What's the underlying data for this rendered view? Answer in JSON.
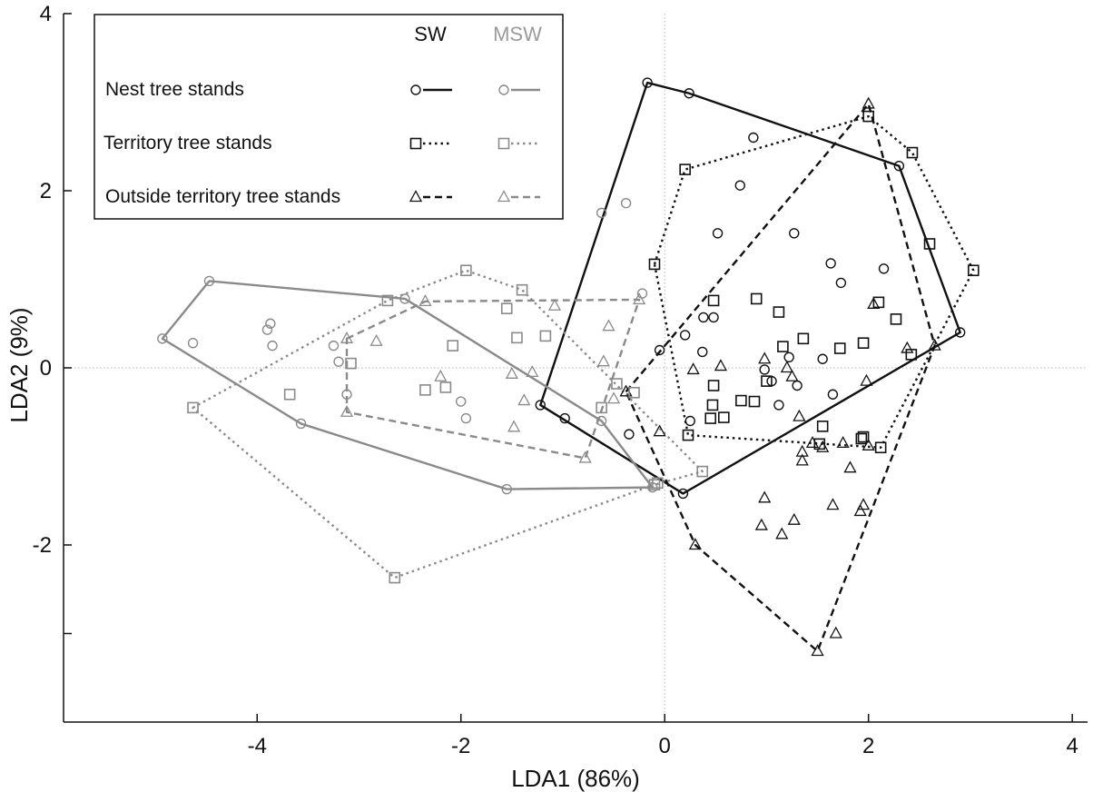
{
  "chart_data": {
    "type": "scatter",
    "title": "",
    "xlabel": "LDA1 (86%)",
    "ylabel": "LDA2 (9%)",
    "xlim": [
      -5.9,
      4.15
    ],
    "ylim": [
      -4.0,
      4.0
    ],
    "xticks": [
      -4,
      -2,
      0,
      2,
      4
    ],
    "yticks": [
      4,
      2,
      0,
      -2
    ],
    "xtick_labels": [
      "-4",
      "-2",
      "0",
      "2",
      "4"
    ],
    "ytick_labels": [
      "4",
      "2",
      "0",
      "-2"
    ],
    "zero_lines": true,
    "grid": false,
    "legend": {
      "position": "top-left",
      "col_headers": [
        "SW",
        "MSW"
      ],
      "rows": [
        "Nest tree stands",
        "Territory tree stands",
        "Outside territory tree stands"
      ]
    },
    "colors": {
      "SW": "#111111",
      "MSW": "#8a8a8a"
    },
    "series": [
      {
        "group": "SW",
        "stand": "Nest tree stands",
        "marker": "circle",
        "line": "solid",
        "hull": [
          [
            -1.22,
            -0.42
          ],
          [
            -0.17,
            3.22
          ],
          [
            0.24,
            3.1
          ],
          [
            2.3,
            2.28
          ],
          [
            2.9,
            0.4
          ],
          [
            0.18,
            -1.42
          ]
        ],
        "points": [
          [
            -0.98,
            -0.57
          ],
          [
            -0.35,
            -0.75
          ],
          [
            -0.05,
            0.2
          ],
          [
            0.2,
            0.37
          ],
          [
            0.25,
            -0.6
          ],
          [
            0.38,
            0.57
          ],
          [
            0.48,
            0.57
          ],
          [
            0.37,
            0.18
          ],
          [
            0.52,
            1.52
          ],
          [
            0.74,
            2.06
          ],
          [
            0.87,
            2.6
          ],
          [
            1.27,
            1.52
          ],
          [
            1.22,
            0.12
          ],
          [
            1.63,
            1.18
          ],
          [
            1.73,
            0.96
          ],
          [
            2.15,
            1.12
          ],
          [
            1.55,
            0.1
          ],
          [
            1.65,
            -0.3
          ],
          [
            1.12,
            -0.42
          ],
          [
            1.05,
            -0.15
          ],
          [
            1.3,
            -0.2
          ],
          [
            0.98,
            -0.02
          ]
        ]
      },
      {
        "group": "SW",
        "stand": "Territory tree stands",
        "marker": "square",
        "line": "dotted",
        "hull": [
          [
            -0.1,
            1.17
          ],
          [
            0.2,
            2.24
          ],
          [
            2.0,
            2.84
          ],
          [
            2.43,
            2.43
          ],
          [
            3.03,
            1.1
          ],
          [
            2.12,
            -0.9
          ],
          [
            0.23,
            -0.76
          ]
        ],
        "points": [
          [
            0.48,
            0.76
          ],
          [
            0.9,
            0.78
          ],
          [
            1.12,
            0.63
          ],
          [
            0.48,
            -0.2
          ],
          [
            0.58,
            -0.56
          ],
          [
            0.75,
            -0.37
          ],
          [
            0.88,
            -0.38
          ],
          [
            1.0,
            -0.15
          ],
          [
            1.16,
            0.24
          ],
          [
            1.36,
            0.33
          ],
          [
            1.72,
            0.22
          ],
          [
            1.95,
            0.28
          ],
          [
            2.1,
            0.74
          ],
          [
            2.27,
            0.55
          ],
          [
            2.42,
            0.15
          ],
          [
            2.6,
            1.4
          ],
          [
            1.55,
            -0.66
          ],
          [
            1.95,
            -0.78
          ],
          [
            1.52,
            -0.86
          ],
          [
            1.93,
            -0.8
          ],
          [
            0.47,
            -0.42
          ],
          [
            0.45,
            -0.57
          ]
        ]
      },
      {
        "group": "SW",
        "stand": "Outside territory tree stands",
        "marker": "triangle",
        "line": "dashed",
        "hull": [
          [
            -0.38,
            -0.27
          ],
          [
            2.0,
            2.98
          ],
          [
            2.65,
            0.25
          ],
          [
            1.5,
            -3.2
          ],
          [
            0.3,
            -2.0
          ]
        ],
        "points": [
          [
            -0.05,
            -0.72
          ],
          [
            0.28,
            -0.02
          ],
          [
            0.55,
            0.02
          ],
          [
            0.98,
            0.1
          ],
          [
            1.2,
            0.0
          ],
          [
            1.25,
            -0.1
          ],
          [
            1.32,
            -0.55
          ],
          [
            1.45,
            -0.85
          ],
          [
            1.35,
            -0.95
          ],
          [
            1.55,
            -0.9
          ],
          [
            1.75,
            -0.85
          ],
          [
            1.98,
            -0.15
          ],
          [
            2.0,
            -0.88
          ],
          [
            2.05,
            0.72
          ],
          [
            2.38,
            0.22
          ],
          [
            0.98,
            -1.47
          ],
          [
            0.95,
            -1.78
          ],
          [
            1.15,
            -1.88
          ],
          [
            1.27,
            -1.72
          ],
          [
            1.65,
            -1.55
          ],
          [
            1.92,
            -1.62
          ],
          [
            1.68,
            -3.0
          ],
          [
            1.82,
            -1.13
          ],
          [
            1.35,
            -1.05
          ],
          [
            1.95,
            -1.55
          ]
        ]
      },
      {
        "group": "MSW",
        "stand": "Nest tree stands",
        "marker": "circle",
        "line": "solid",
        "hull": [
          [
            -4.93,
            0.33
          ],
          [
            -4.47,
            0.98
          ],
          [
            -2.55,
            0.78
          ],
          [
            -0.62,
            -0.6
          ],
          [
            -0.12,
            -1.35
          ],
          [
            -1.55,
            -1.37
          ],
          [
            -3.57,
            -0.63
          ]
        ],
        "points": [
          [
            -4.63,
            0.28
          ],
          [
            -3.9,
            0.43
          ],
          [
            -3.87,
            0.5
          ],
          [
            -3.85,
            0.25
          ],
          [
            -3.25,
            0.25
          ],
          [
            -3.2,
            0.07
          ],
          [
            -3.12,
            -0.3
          ],
          [
            -2.0,
            -0.38
          ],
          [
            -1.95,
            -0.57
          ],
          [
            -0.22,
            0.84
          ],
          [
            -0.62,
            1.75
          ],
          [
            -0.38,
            1.86
          ]
        ]
      },
      {
        "group": "MSW",
        "stand": "Territory tree stands",
        "marker": "square",
        "line": "dotted",
        "hull": [
          [
            -4.63,
            -0.45
          ],
          [
            -2.72,
            0.76
          ],
          [
            -1.95,
            1.1
          ],
          [
            -1.4,
            0.88
          ],
          [
            0.37,
            -1.17
          ],
          [
            -0.1,
            -1.32
          ],
          [
            -2.65,
            -2.37
          ]
        ],
        "points": [
          [
            -3.68,
            -0.3
          ],
          [
            -3.08,
            0.05
          ],
          [
            -2.35,
            -0.25
          ],
          [
            -2.08,
            0.25
          ],
          [
            -2.15,
            -0.22
          ],
          [
            -1.55,
            0.67
          ],
          [
            -1.45,
            0.34
          ],
          [
            -1.17,
            0.36
          ],
          [
            -0.47,
            -0.18
          ],
          [
            -0.62,
            -0.45
          ],
          [
            -0.3,
            -0.28
          ],
          [
            -0.07,
            -1.3
          ]
        ]
      },
      {
        "group": "MSW",
        "stand": "Outside territory tree stands",
        "marker": "triangle",
        "line": "dashed",
        "hull": [
          [
            -3.12,
            0.33
          ],
          [
            -2.35,
            0.75
          ],
          [
            -0.25,
            0.77
          ],
          [
            -0.78,
            -1.02
          ],
          [
            -3.12,
            -0.5
          ]
        ],
        "points": [
          [
            -2.83,
            0.3
          ],
          [
            -2.2,
            -0.1
          ],
          [
            -1.5,
            -0.07
          ],
          [
            -1.38,
            -0.37
          ],
          [
            -1.48,
            -0.67
          ],
          [
            -1.3,
            -0.05
          ],
          [
            -1.08,
            0.7
          ],
          [
            -0.55,
            0.47
          ],
          [
            -0.6,
            0.07
          ],
          [
            -0.5,
            -0.35
          ]
        ]
      }
    ]
  }
}
